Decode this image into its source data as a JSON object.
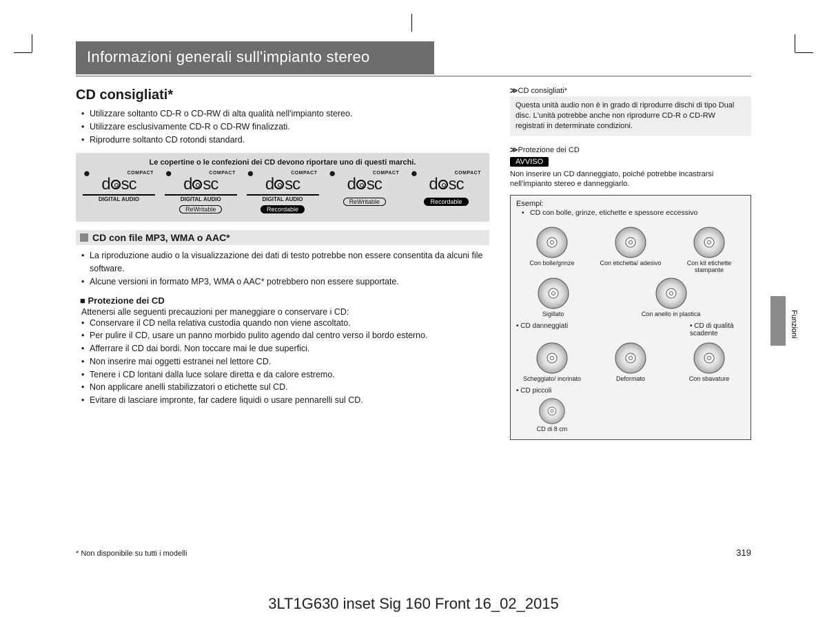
{
  "header": {
    "title": "Informazioni generali sull'impianto stereo"
  },
  "main": {
    "section_title": "CD consigliati*",
    "intro_bullets": [
      "Utilizzare soltanto CD-R o CD-RW di alta qualità nell'impianto stereo.",
      "Utilizzare esclusivamente CD-R o CD-RW finalizzati.",
      "Riprodurre soltanto CD rotondi standard."
    ],
    "logo_box": {
      "caption": "Le copertine o le confezioni dei CD devono riportare uno di questi marchi.",
      "logos": [
        {
          "top_left": "COMPACT",
          "word": "disc",
          "sub": "DIGITAL AUDIO",
          "pill": null,
          "pill_inv": false
        },
        {
          "top_left": "COMPACT",
          "word": "disc",
          "sub": "DIGITAL AUDIO",
          "pill": "ReWritable",
          "pill_inv": false
        },
        {
          "top_left": "COMPACT",
          "word": "disc",
          "sub": "DIGITAL AUDIO",
          "pill": "Recordable",
          "pill_inv": true
        },
        {
          "top_left": "COMPACT",
          "word": "disc",
          "sub": "",
          "pill": "ReWritable",
          "pill_inv": false
        },
        {
          "top_left": "COMPACT",
          "word": "disc",
          "sub": "",
          "pill": "Recordable",
          "pill_inv": true
        }
      ]
    },
    "sub1": {
      "heading": "CD con file MP3, WMA o AAC*",
      "bullets": [
        "La riproduzione audio o la visualizzazione dei dati di testo potrebbe non essere consentita da alcuni file software.",
        "Alcune versioni in formato MP3, WMA o AAC* potrebbero non essere supportate."
      ]
    },
    "sub2": {
      "heading": "Protezione dei CD",
      "lead": "Attenersi alle seguenti precauzioni per maneggiare o conservare i CD:",
      "bullets": [
        "Conservare il CD nella relativa custodia quando non viene ascoltato.",
        "Per pulire il CD, usare un panno morbido pulito agendo dal centro verso il bordo esterno.",
        "Afferrare il CD dai bordi. Non toccare mai le due superfici.",
        "Non inserire mai oggetti estranei nel lettore CD.",
        "Tenere i CD lontani dalla luce solare diretta e da calore estremo.",
        "Non applicare anelli stabilizzatori o etichette sul CD.",
        "Evitare di lasciare impronte, far cadere liquidi o usare pennarelli sul CD."
      ]
    },
    "footnote": "* Non disponibile su tutti i modelli"
  },
  "side": {
    "ref1_label": "CD consigliati*",
    "ref1_text": "Questa unità audio non è in grado di riprodurre dischi di tipo Dual disc. L'unità potrebbe anche non riprodurre CD-R o CD-RW registrati in determinate condizioni.",
    "ref2_label": "Protezione dei CD",
    "avviso": "AVVISO",
    "avviso_text": "Non inserire un CD danneggiato, poiché potrebbe incastrarsi nell'impianto stereo e danneggiarlo.",
    "examples": {
      "title": "Esempi:",
      "cat1": "CD con bolle, grinze, etichette e spessore eccessivo",
      "row1": [
        {
          "label": "Con bolle/grinze"
        },
        {
          "label": "Con etichetta/ adesivo"
        },
        {
          "label": "Con kit etichette stampante"
        }
      ],
      "row2": [
        {
          "label": "Sigillato"
        },
        {
          "label": "Con anello in plastica"
        }
      ],
      "cat2": "CD danneggiati",
      "cat2b": "CD di qualità scadente",
      "row3": [
        {
          "label": "Scheggiato/ incrinato"
        },
        {
          "label": "Deformato"
        },
        {
          "label": "Con sbavature"
        }
      ],
      "cat3": "CD piccoli",
      "row4": [
        {
          "label": "CD di 8 cm"
        }
      ]
    },
    "tab_label": "Funzioni"
  },
  "page_number": "319",
  "imprint": "3LT1G630 inset Sig 160 Front 16_02_2015",
  "colors": {
    "header_bg": "#6d6d6d",
    "gray_box": "#dcdcdc",
    "light_gray": "#e6e6e6",
    "side_tab": "#8a8a8a"
  }
}
